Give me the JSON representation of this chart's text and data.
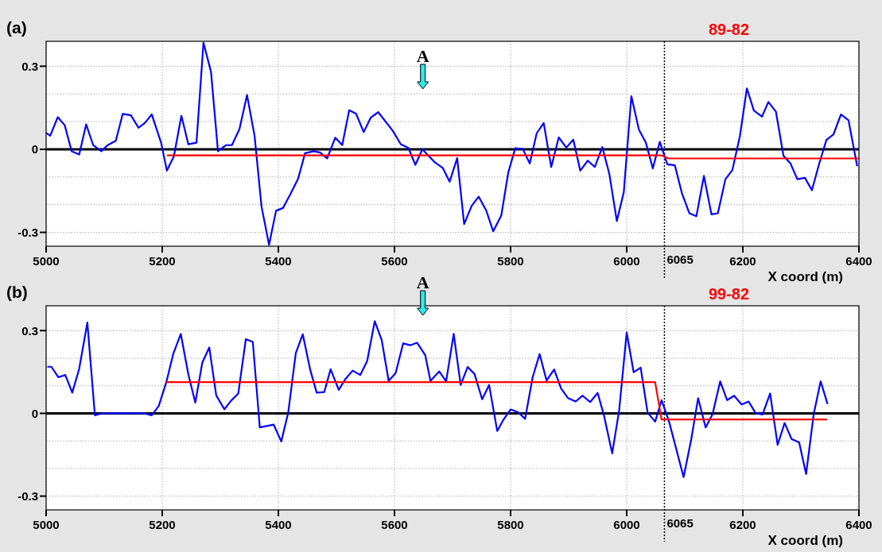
{
  "chart_data": [
    {
      "type": "line",
      "title": "89-82",
      "xlabel": "X coord (m)",
      "annotations": [
        "(a)",
        "A"
      ],
      "xlim": [
        5000,
        6400
      ],
      "ylim": [
        -0.35,
        0.39
      ],
      "xticks": [
        5000,
        5200,
        5400,
        5600,
        5800,
        6000,
        6200,
        6400
      ],
      "yticks": [
        -0.3,
        {
          "value": -0.2,
          "label": null
        },
        {
          "value": -0.1,
          "label": null
        },
        0,
        {
          "value": 0.1,
          "label": null
        },
        {
          "value": 0.2,
          "label": null
        },
        0.3
      ],
      "grid": true,
      "marker": "none",
      "line_style": "solid",
      "ref_lines": [
        {
          "axis": "y",
          "value": 0,
          "color": "#000000",
          "line_style": "solid"
        },
        {
          "axis": "x",
          "value": 6065,
          "label": "6065",
          "color": "#000000",
          "line_style": "dotted"
        }
      ],
      "series": [
        {
          "color": "#0000ff",
          "x": [
            5000,
            5007,
            5020,
            5032,
            5044,
            5057,
            5069,
            5081,
            5095,
            5106,
            5120,
            5132,
            5146,
            5159,
            5170,
            5182,
            5198,
            5208,
            5220,
            5233,
            5245,
            5259,
            5271,
            5284,
            5296,
            5310,
            5320,
            5333,
            5346,
            5359,
            5371,
            5384,
            5396,
            5408,
            5421,
            5434,
            5446,
            5461,
            5472,
            5484,
            5498,
            5510,
            5522,
            5534,
            5547,
            5559,
            5572,
            5597,
            5611,
            5624,
            5636,
            5648,
            5670,
            5683,
            5695,
            5708,
            5720,
            5733,
            5745,
            5758,
            5770,
            5784,
            5796,
            5808,
            5821,
            5833,
            5845,
            5857,
            5870,
            5883,
            5896,
            5908,
            5920,
            5933,
            5945,
            5958,
            5970,
            5983,
            5995,
            6008,
            6021,
            6033,
            6045,
            6057,
            6070,
            6083,
            6095,
            6108,
            6120,
            6133,
            6146,
            6157,
            6170,
            6182,
            6195,
            6207,
            6219,
            6233,
            6244,
            6257,
            6270,
            6282,
            6294,
            6307,
            6319,
            6331,
            6344,
            6356,
            6369,
            6382,
            6397
          ],
          "values": [
            0.059,
            0.049,
            0.116,
            0.087,
            -0.007,
            -0.019,
            0.09,
            0.015,
            -0.007,
            0.015,
            0.031,
            0.128,
            0.123,
            0.078,
            0.095,
            0.126,
            0.024,
            -0.077,
            -0.026,
            0.121,
            0.018,
            0.024,
            0.385,
            0.28,
            -0.007,
            0.015,
            0.015,
            0.073,
            0.196,
            0.049,
            -0.207,
            -0.345,
            -0.222,
            -0.212,
            -0.161,
            -0.106,
            -0.014,
            -0.007,
            -0.012,
            -0.033,
            0.042,
            0.015,
            0.141,
            0.128,
            0.062,
            0.114,
            0.134,
            0.067,
            0.018,
            0.005,
            -0.056,
            0,
            -0.048,
            -0.067,
            -0.117,
            -0.032,
            -0.27,
            -0.204,
            -0.171,
            -0.221,
            -0.296,
            -0.239,
            -0.084,
            0.004,
            0.001,
            -0.051,
            0.058,
            0.095,
            -0.064,
            0.043,
            0.006,
            0.035,
            -0.077,
            -0.041,
            -0.064,
            0.008,
            -0.088,
            -0.259,
            -0.155,
            0.192,
            0.071,
            0.024,
            -0.069,
            0.027,
            -0.054,
            -0.058,
            -0.158,
            -0.231,
            -0.242,
            -0.096,
            -0.235,
            -0.231,
            -0.108,
            -0.075,
            0.048,
            0.22,
            0.14,
            0.118,
            0.171,
            0.136,
            -0.023,
            -0.051,
            -0.108,
            -0.103,
            -0.148,
            -0.056,
            0.034,
            0.053,
            0.126,
            0.105,
            -0.061
          ]
        },
        {
          "color": "#ff0000",
          "x": [
            5208,
            6060,
            6072,
            6400
          ],
          "values": [
            -0.022,
            -0.022,
            -0.033,
            -0.033
          ]
        }
      ]
    },
    {
      "type": "line",
      "title": "99-82",
      "xlabel": "X coord (m)",
      "annotations": [
        "(b)",
        "A"
      ],
      "xlim": [
        5000,
        6400
      ],
      "ylim": [
        -0.35,
        0.39
      ],
      "xticks": [
        5000,
        5200,
        5400,
        5600,
        5800,
        6000,
        6200,
        6400
      ],
      "yticks": [
        -0.3,
        {
          "value": -0.2,
          "label": null
        },
        {
          "value": -0.1,
          "label": null
        },
        0,
        {
          "value": 0.1,
          "label": null
        },
        {
          "value": 0.2,
          "label": null
        },
        0.3
      ],
      "grid": true,
      "marker": "none",
      "line_style": "solid",
      "ref_lines": [
        {
          "axis": "y",
          "value": 0,
          "color": "#000000",
          "line_style": "solid"
        },
        {
          "axis": "x",
          "value": 6065,
          "label": "6065",
          "color": "#000000",
          "line_style": "dotted"
        }
      ],
      "series": [
        {
          "color": "#0000ff",
          "x": [
            5002,
            5009,
            5021,
            5033,
            5045,
            5057,
            5071,
            5084,
            5096,
            5169,
            5182,
            5194,
            5207,
            5219,
            5232,
            5245,
            5257,
            5269,
            5281,
            5293,
            5307,
            5319,
            5331,
            5344,
            5356,
            5368,
            5392,
            5405,
            5417,
            5430,
            5442,
            5455,
            5466,
            5479,
            5490,
            5504,
            5516,
            5528,
            5541,
            5553,
            5566,
            5578,
            5590,
            5602,
            5615,
            5627,
            5639,
            5653,
            5662,
            5677,
            5689,
            5702,
            5714,
            5726,
            5738,
            5751,
            5763,
            5777,
            5788,
            5800,
            5813,
            5825,
            5838,
            5850,
            5862,
            5875,
            5887,
            5899,
            5912,
            5924,
            5937,
            5950,
            5961,
            5975,
            5987,
            6000,
            6012,
            6024,
            6036,
            6049,
            6060,
            6073,
            6098,
            6111,
            6123,
            6136,
            6148,
            6161,
            6173,
            6185,
            6198,
            6210,
            6222,
            6234,
            6247,
            6260,
            6272,
            6284,
            6297,
            6309,
            6322,
            6334,
            6346
          ],
          "values": [
            0.169,
            0.169,
            0.131,
            0.139,
            0.075,
            0.162,
            0.329,
            -0.007,
            0,
            0,
            -0.007,
            0.027,
            0.113,
            0.216,
            0.288,
            0.141,
            0.039,
            0.184,
            0.239,
            0.065,
            0.015,
            0.047,
            0.072,
            0.269,
            0.259,
            -0.051,
            -0.041,
            -0.102,
            0.003,
            0.218,
            0.287,
            0.157,
            0.075,
            0.077,
            0.16,
            0.085,
            0.126,
            0.155,
            0.139,
            0.19,
            0.334,
            0.266,
            0.118,
            0.146,
            0.254,
            0.247,
            0.256,
            0.211,
            0.118,
            0.152,
            0.116,
            0.288,
            0.103,
            0.168,
            0.142,
            0.051,
            0.103,
            -0.064,
            -0.022,
            0.014,
            0.004,
            -0.02,
            0.131,
            0.215,
            0.119,
            0.159,
            0.09,
            0.055,
            0.043,
            0.064,
            0.041,
            0.074,
            -0.009,
            -0.145,
            0.011,
            0.293,
            0.149,
            0.166,
            0.003,
            -0.03,
            0.048,
            -0.03,
            -0.231,
            -0.096,
            0.055,
            -0.051,
            -0.002,
            0.116,
            0.048,
            0.064,
            0.032,
            0.043,
            0.001,
            -0.004,
            0.072,
            -0.114,
            -0.035,
            -0.093,
            -0.105,
            -0.22,
            -0.004,
            0.116,
            0.034
          ]
        },
        {
          "color": "#ff0000",
          "x": [
            5207,
            6049,
            6060,
            6345
          ],
          "values": [
            0.113,
            0.113,
            -0.022,
            -0.022
          ]
        }
      ]
    }
  ]
}
